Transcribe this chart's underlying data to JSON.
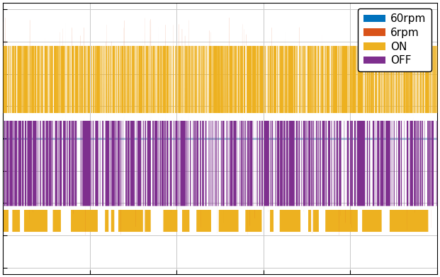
{
  "legend_labels": [
    "60rpm",
    "6rpm",
    "ON",
    "OFF"
  ],
  "colors": [
    "#0072BD",
    "#D95319",
    "#EDB120",
    "#7E2F8E"
  ],
  "figsize": [
    6.21,
    3.92
  ],
  "dpi": 100,
  "xlim": [
    0,
    1
  ],
  "ylim": [
    -1.05,
    1.05
  ],
  "background_color": "#FFFFFF",
  "grid_color": "#C8C8C8",
  "n_points": 10000,
  "seed": 7
}
